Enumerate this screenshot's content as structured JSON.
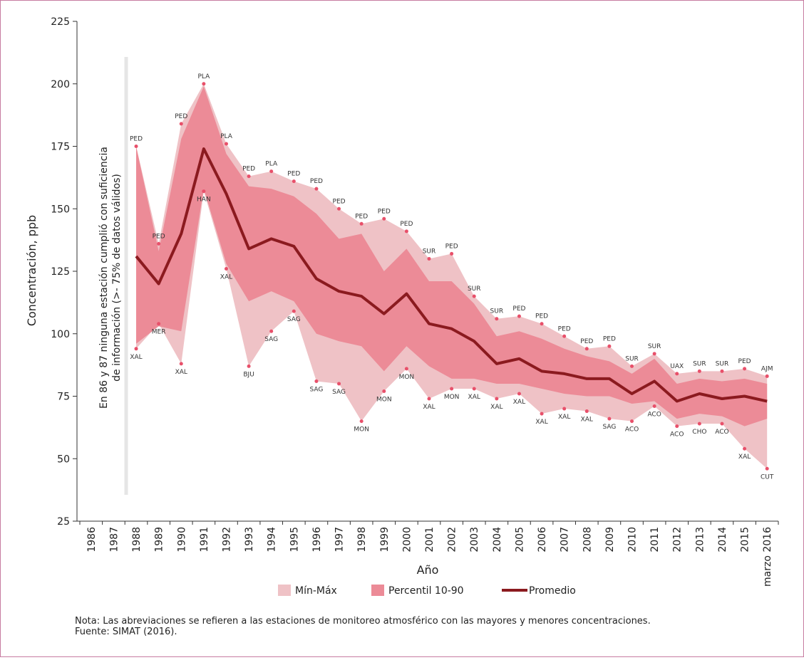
{
  "chart_data": {
    "type": "range-line",
    "y_label": "Concentración, ppb",
    "x_label": "Año",
    "annotation": [
      "En 86 y 87 ninguna estación cumplió con suficiencia",
      "de información (>- 75% de datos válidos)"
    ],
    "categories": [
      "1986",
      "1987",
      "1988",
      "1989",
      "1990",
      "1991",
      "1992",
      "1993",
      "1994",
      "1995",
      "1996",
      "1997",
      "1998",
      "1999",
      "2000",
      "2001",
      "2002",
      "2003",
      "2004",
      "2005",
      "2006",
      "2007",
      "2008",
      "2009",
      "2010",
      "2011",
      "2012",
      "2013",
      "2014",
      "2015",
      "marzo 2016"
    ],
    "bands": [
      {
        "name": "Mín-Máx",
        "color": "#efc2c6",
        "high": [
          null,
          null,
          175,
          136,
          184,
          200,
          176,
          163,
          165,
          161,
          158,
          150,
          144,
          146,
          141,
          130,
          132,
          115,
          106,
          107,
          104,
          99,
          94,
          95,
          87,
          92,
          84,
          85,
          85,
          86,
          83
        ],
        "low": [
          null,
          null,
          94,
          104,
          88,
          157,
          126,
          87,
          101,
          109,
          81,
          80,
          65,
          77,
          86,
          74,
          78,
          78,
          74,
          76,
          68,
          70,
          69,
          66,
          65,
          71,
          63,
          64,
          64,
          54,
          46
        ],
        "high_labels": [
          null,
          null,
          "PED",
          "PED",
          "PED",
          "PLA",
          "PLA",
          "PED",
          "PLA",
          "PED",
          "PED",
          "PED",
          "PED",
          "PED",
          "PED",
          "SUR",
          "PED",
          "SUR",
          "SUR",
          "PED",
          "PED",
          "PED",
          "PED",
          "PED",
          "SUR",
          "SUR",
          "UAX",
          "SUR",
          "SUR",
          "PED",
          "AJM"
        ],
        "low_labels": [
          null,
          null,
          "XAL",
          "MER",
          "XAL",
          "HAN",
          "XAL",
          "BJU",
          "SAG",
          "SAG",
          "SAG",
          "SAG",
          "MON",
          "MON",
          "MON",
          "XAL",
          "MON",
          "XAL",
          "XAL",
          "XAL",
          "XAL",
          "XAL",
          "XAL",
          "SAG",
          "ACO",
          "ACO",
          "ACO",
          "CHO",
          "ACO",
          "XAL",
          "CUT"
        ]
      },
      {
        "name": "Percentil 10-90",
        "color": "#ec8b97",
        "high": [
          null,
          null,
          175,
          133,
          178,
          199,
          172,
          159,
          158,
          155,
          148,
          138,
          140,
          125,
          134,
          121,
          121,
          112,
          99,
          101,
          98,
          94,
          91,
          89,
          84,
          90,
          80,
          82,
          81,
          82,
          80
        ],
        "low": [
          null,
          null,
          96,
          103,
          101,
          158,
          128,
          113,
          117,
          113,
          100,
          97,
          95,
          85,
          95,
          87,
          82,
          82,
          80,
          80,
          78,
          76,
          75,
          75,
          72,
          73,
          66,
          68,
          67,
          63,
          66
        ]
      }
    ],
    "series": [
      {
        "name": "Promedio",
        "color": "#8b1a1f",
        "values": [
          null,
          null,
          131,
          120,
          140,
          174,
          156,
          134,
          138,
          135,
          122,
          117,
          115,
          108,
          116,
          104,
          102,
          97,
          88,
          90,
          85,
          84,
          82,
          82,
          76,
          81,
          73,
          76,
          74,
          75,
          73
        ]
      }
    ],
    "ylim": [
      25,
      225
    ],
    "yticks": [
      25,
      50,
      75,
      100,
      125,
      150,
      175,
      200,
      225
    ],
    "point_color": "#e8506a",
    "notes": [
      "Nota: Las abreviaciones se refieren a las estaciones de monitoreo atmosférico con las mayores y menores concentraciones.",
      "Fuente: SIMAT (2016)."
    ]
  }
}
